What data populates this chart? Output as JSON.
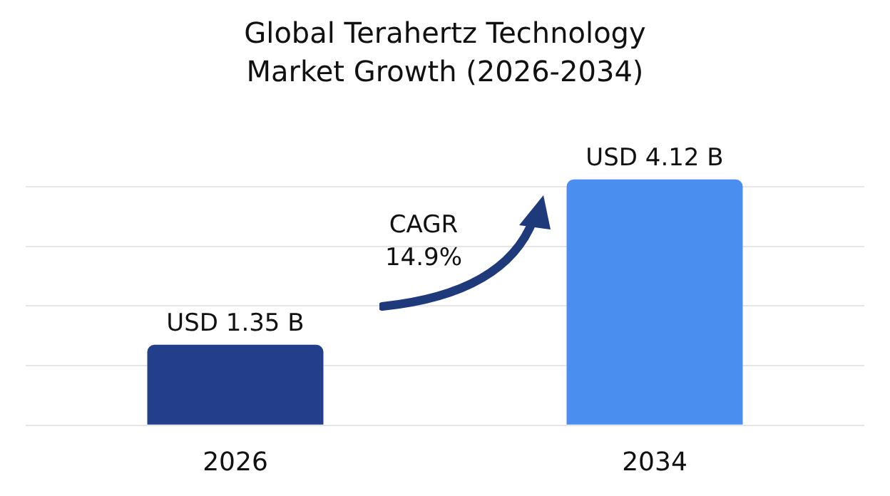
{
  "chart_data": {
    "type": "bar",
    "title": "Global Terahertz Technology Market Growth (2026-2034)",
    "categories": [
      "2026",
      "2034"
    ],
    "values": [
      1.35,
      4.12
    ],
    "colors": [
      "#233f8c",
      "#4a8ef0"
    ],
    "value_labels": [
      "USD 1.35 B",
      "USD 4.12 B"
    ],
    "yticks": [
      {
        "value": 0,
        "label": null
      },
      {
        "value": 1,
        "label": null
      },
      {
        "value": 2,
        "label": null
      },
      {
        "value": 3,
        "label": null
      },
      {
        "value": 4,
        "label": null
      }
    ],
    "grid": "y",
    "tick_labels": "x",
    "annotations": [
      "CAGR 14.9%"
    ]
  }
}
